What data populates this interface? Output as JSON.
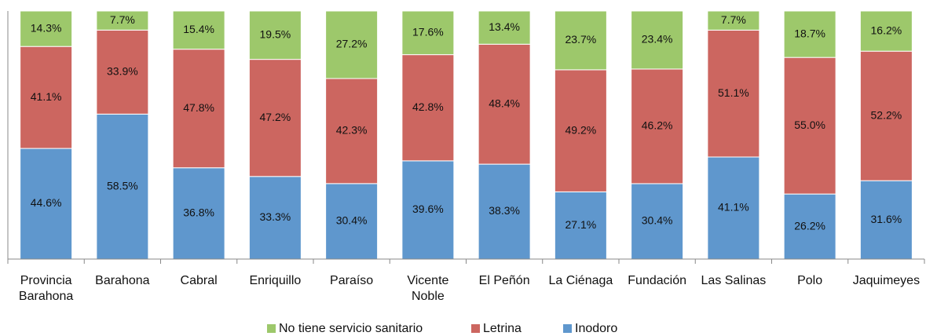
{
  "chart_data": {
    "type": "stacked_bar",
    "categories": [
      "Provincia Barahona",
      "Barahona",
      "Cabral",
      "Enriquillo",
      "Paraíso",
      "Vicente Noble",
      "El Peñón",
      "La Ciénaga",
      "Fundación",
      "Las Salinas",
      "Polo",
      "Jaquimeyes"
    ],
    "series": [
      {
        "name": "Inodoro",
        "color": "#5f97cd",
        "values": [
          44.6,
          58.5,
          36.8,
          33.3,
          30.4,
          39.6,
          38.3,
          27.1,
          30.4,
          41.1,
          26.2,
          31.6
        ],
        "value_labels": [
          "44.6%",
          "58.5%",
          "36.8%",
          "33.3%",
          "30.4%",
          "39.6%",
          "38.3%",
          "27.1%",
          "30.4%",
          "41.1%",
          "26.2%",
          "31.6%"
        ]
      },
      {
        "name": "Letrina",
        "color": "#cc6660",
        "values": [
          41.1,
          33.9,
          47.8,
          47.2,
          42.3,
          42.8,
          48.4,
          49.2,
          46.2,
          51.1,
          55.0,
          52.2
        ],
        "value_labels": [
          "41.1%",
          "33.9%",
          "47.8%",
          "47.2%",
          "42.3%",
          "42.8%",
          "48.4%",
          "49.2%",
          "46.2%",
          "51.1%",
          "55.0%",
          "52.2%"
        ]
      },
      {
        "name": "No tiene servicio sanitario",
        "color": "#9dc86b",
        "values": [
          14.3,
          7.7,
          15.4,
          19.5,
          27.2,
          17.6,
          13.4,
          23.7,
          23.4,
          7.7,
          18.7,
          16.2
        ],
        "value_labels": [
          "14.3%",
          "7.7%",
          "15.4%",
          "19.5%",
          "27.2%",
          "17.6%",
          "13.4%",
          "23.7%",
          "23.4%",
          "7.7%",
          "18.7%",
          "16.2%"
        ]
      }
    ],
    "legend": "bottom"
  }
}
